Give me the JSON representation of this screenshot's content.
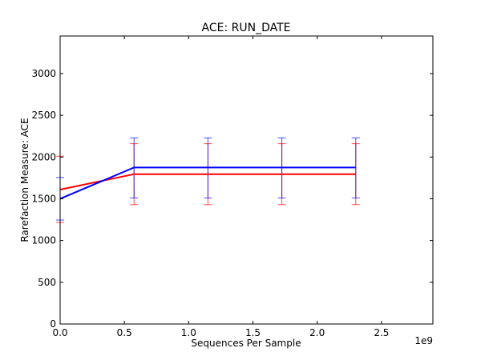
{
  "chart_data": {
    "type": "line",
    "title": "ACE: RUN_DATE",
    "xlabel": "Sequences Per Sample",
    "ylabel": "Rarefaction Measure: ACE",
    "x_offset_label": "1e9",
    "xlim": [
      0.0,
      2.9
    ],
    "ylim": [
      0,
      3450
    ],
    "x_ticks": [
      0.0,
      0.5,
      1.0,
      1.5,
      2.0,
      2.5
    ],
    "x_tick_labels": [
      "0.0",
      "0.5",
      "1.0",
      "1.5",
      "2.0",
      "2.5"
    ],
    "y_ticks": [
      0,
      500,
      1000,
      1500,
      2000,
      2500,
      3000
    ],
    "y_tick_labels": [
      "0",
      "500",
      "1000",
      "1500",
      "2000",
      "2500",
      "3000"
    ],
    "grid": false,
    "legend": "none",
    "series": [
      {
        "color": "#ff0000",
        "x": [
          0.0,
          0.575,
          1.15,
          1.725,
          2.3
        ],
        "y": [
          1610,
          1795,
          1795,
          1795,
          1795
        ],
        "err_low": [
          1215,
          1430,
          1430,
          1430,
          1430
        ],
        "err_high": [
          2010,
          2160,
          2160,
          2160,
          2160
        ]
      },
      {
        "color": "#0000ff",
        "x": [
          0.0,
          0.575,
          1.15,
          1.725,
          2.3
        ],
        "y": [
          1500,
          1875,
          1875,
          1875,
          1875
        ],
        "err_low": [
          1245,
          1510,
          1510,
          1510,
          1510
        ],
        "err_high": [
          1755,
          2230,
          2230,
          2230,
          2230
        ]
      }
    ]
  }
}
